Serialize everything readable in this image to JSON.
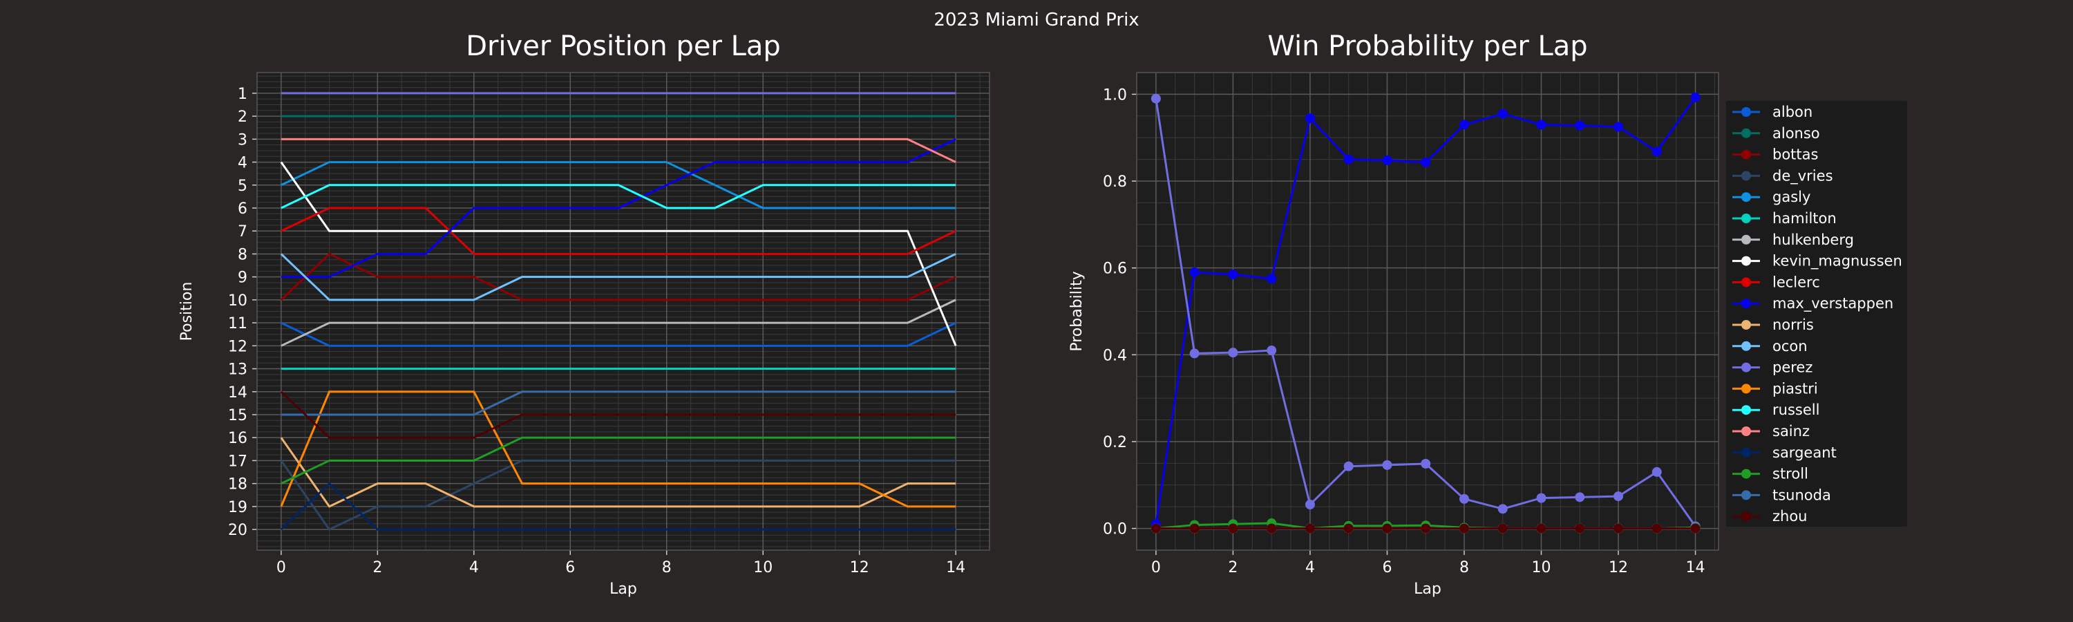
{
  "suptitle": "2023 Miami Grand Prix",
  "colors": {
    "background": "#292625",
    "axes_bg": "#1e1e1e",
    "text": "#ffffff"
  },
  "chart_data": [
    {
      "type": "line",
      "title": "Driver Position per Lap",
      "xlabel": "Lap",
      "ylabel": "Position",
      "xlim": [
        -0.5,
        14.7
      ],
      "ylim": [
        0.1,
        20.9
      ],
      "y_inverted": true,
      "x_ticks": [
        0,
        2,
        4,
        6,
        8,
        10,
        12,
        14
      ],
      "y_ticks": [
        1,
        2,
        3,
        4,
        5,
        6,
        7,
        8,
        9,
        10,
        11,
        12,
        13,
        14,
        15,
        16,
        17,
        18,
        19,
        20
      ],
      "grid": true,
      "x": [
        0,
        1,
        2,
        3,
        4,
        5,
        6,
        7,
        8,
        9,
        10,
        11,
        12,
        13,
        14
      ],
      "series": [
        {
          "name": "albon",
          "color": "#0a5dd6",
          "values": [
            11,
            12,
            12,
            12,
            12,
            12,
            12,
            12,
            12,
            12,
            12,
            12,
            12,
            12,
            11
          ]
        },
        {
          "name": "alonso",
          "color": "#006f62",
          "values": [
            2,
            2,
            2,
            2,
            2,
            2,
            2,
            2,
            2,
            2,
            2,
            2,
            2,
            2,
            2
          ]
        },
        {
          "name": "bottas",
          "color": "#900000",
          "values": [
            10,
            8,
            9,
            9,
            9,
            10,
            10,
            10,
            10,
            10,
            10,
            10,
            10,
            10,
            9
          ]
        },
        {
          "name": "de_vries",
          "color": "#2b4562",
          "values": [
            17,
            20,
            19,
            19,
            18,
            17,
            17,
            17,
            17,
            17,
            17,
            17,
            17,
            17,
            17
          ]
        },
        {
          "name": "gasly",
          "color": "#0f90e0",
          "values": [
            5,
            4,
            4,
            4,
            4,
            4,
            4,
            4,
            4,
            5,
            6,
            6,
            6,
            6,
            6
          ]
        },
        {
          "name": "hamilton",
          "color": "#00d2be",
          "values": [
            13,
            13,
            13,
            13,
            13,
            13,
            13,
            13,
            13,
            13,
            13,
            13,
            13,
            13,
            13
          ]
        },
        {
          "name": "hulkenberg",
          "color": "#b6babd",
          "values": [
            12,
            11,
            11,
            11,
            11,
            11,
            11,
            11,
            11,
            11,
            11,
            11,
            11,
            11,
            10
          ]
        },
        {
          "name": "kevin_magnussen",
          "color": "#ffffff",
          "values": [
            4,
            7,
            7,
            7,
            7,
            7,
            7,
            7,
            7,
            7,
            7,
            7,
            7,
            7,
            12
          ]
        },
        {
          "name": "leclerc",
          "color": "#dc0000",
          "values": [
            7,
            6,
            6,
            6,
            8,
            8,
            8,
            8,
            8,
            8,
            8,
            8,
            8,
            8,
            7
          ]
        },
        {
          "name": "max_verstappen",
          "color": "#0600ef",
          "values": [
            9,
            9,
            8,
            8,
            6,
            6,
            6,
            6,
            5,
            4,
            4,
            4,
            4,
            4,
            3
          ]
        },
        {
          "name": "norris",
          "color": "#eeb370",
          "values": [
            16,
            19,
            18,
            18,
            19,
            19,
            19,
            19,
            19,
            19,
            19,
            19,
            19,
            18,
            18
          ]
        },
        {
          "name": "ocon",
          "color": "#70c2ff",
          "values": [
            8,
            10,
            10,
            10,
            10,
            9,
            9,
            9,
            9,
            9,
            9,
            9,
            9,
            9,
            8
          ]
        },
        {
          "name": "perez",
          "color": "#716de2",
          "values": [
            1,
            1,
            1,
            1,
            1,
            1,
            1,
            1,
            1,
            1,
            1,
            1,
            1,
            1,
            1
          ]
        },
        {
          "name": "piastri",
          "color": "#ff8700",
          "values": [
            19,
            14,
            14,
            14,
            14,
            18,
            18,
            18,
            18,
            18,
            18,
            18,
            18,
            19,
            19
          ]
        },
        {
          "name": "russell",
          "color": "#24ffff",
          "values": [
            6,
            5,
            5,
            5,
            5,
            5,
            5,
            5,
            6,
            6,
            5,
            5,
            5,
            5,
            5
          ]
        },
        {
          "name": "sainz",
          "color": "#ff8181",
          "values": [
            3,
            3,
            3,
            3,
            3,
            3,
            3,
            3,
            3,
            3,
            3,
            3,
            3,
            3,
            4
          ]
        },
        {
          "name": "sargeant",
          "color": "#012564",
          "values": [
            20,
            18,
            20,
            20,
            20,
            20,
            20,
            20,
            20,
            20,
            20,
            20,
            20,
            20,
            20
          ]
        },
        {
          "name": "stroll",
          "color": "#1f9d24",
          "values": [
            18,
            17,
            17,
            17,
            17,
            16,
            16,
            16,
            16,
            16,
            16,
            16,
            16,
            16,
            16
          ]
        },
        {
          "name": "tsunoda",
          "color": "#356cac",
          "values": [
            15,
            15,
            15,
            15,
            15,
            14,
            14,
            14,
            14,
            14,
            14,
            14,
            14,
            14,
            14
          ]
        },
        {
          "name": "zhou",
          "color": "#500000",
          "values": [
            14,
            16,
            16,
            16,
            16,
            15,
            15,
            15,
            15,
            15,
            15,
            15,
            15,
            15,
            15
          ]
        }
      ]
    },
    {
      "type": "line",
      "title": "Win Probability per Lap",
      "xlabel": "Lap",
      "ylabel": "Probability",
      "xlim": [
        -0.5,
        14.6
      ],
      "ylim": [
        -0.05,
        1.05
      ],
      "x_ticks": [
        0,
        2,
        4,
        6,
        8,
        10,
        12,
        14
      ],
      "y_ticks": [
        0.0,
        0.2,
        0.4,
        0.6,
        0.8,
        1.0
      ],
      "grid": true,
      "markers": true,
      "legend": "right",
      "x": [
        0,
        1,
        2,
        3,
        4,
        5,
        6,
        7,
        8,
        9,
        10,
        11,
        12,
        13,
        14
      ],
      "series": [
        {
          "name": "albon",
          "color": "#0a5dd6",
          "values": [
            0,
            0,
            0,
            0,
            0,
            0,
            0,
            0,
            0,
            0,
            0,
            0,
            0,
            0,
            0
          ]
        },
        {
          "name": "alonso",
          "color": "#006f62",
          "values": [
            0,
            0,
            0,
            0,
            0,
            0,
            0,
            0,
            0,
            0,
            0,
            0,
            0,
            0,
            0
          ]
        },
        {
          "name": "bottas",
          "color": "#900000",
          "values": [
            0,
            0,
            0,
            0,
            0,
            0,
            0,
            0,
            0,
            0,
            0,
            0,
            0,
            0,
            0
          ]
        },
        {
          "name": "de_vries",
          "color": "#2b4562",
          "values": [
            0,
            0,
            0,
            0,
            0,
            0,
            0,
            0,
            0,
            0,
            0,
            0,
            0,
            0,
            0
          ]
        },
        {
          "name": "gasly",
          "color": "#0f90e0",
          "values": [
            0,
            0,
            0,
            0,
            0,
            0,
            0,
            0,
            0,
            0,
            0,
            0,
            0,
            0,
            0
          ]
        },
        {
          "name": "hamilton",
          "color": "#00d2be",
          "values": [
            0,
            0,
            0,
            0,
            0,
            0,
            0,
            0,
            0,
            0,
            0,
            0,
            0,
            0,
            0
          ]
        },
        {
          "name": "hulkenberg",
          "color": "#b6babd",
          "values": [
            0,
            0,
            0,
            0,
            0,
            0,
            0,
            0,
            0,
            0,
            0,
            0,
            0,
            0,
            0
          ]
        },
        {
          "name": "kevin_magnussen",
          "color": "#ffffff",
          "values": [
            0,
            0,
            0,
            0,
            0,
            0,
            0,
            0,
            0,
            0,
            0,
            0,
            0,
            0,
            0
          ]
        },
        {
          "name": "leclerc",
          "color": "#dc0000",
          "values": [
            0,
            0,
            0,
            0,
            0,
            0,
            0,
            0,
            0,
            0,
            0,
            0,
            0,
            0,
            0
          ]
        },
        {
          "name": "max_verstappen",
          "color": "#0600ef",
          "values": [
            0.01,
            0.59,
            0.585,
            0.575,
            0.945,
            0.85,
            0.848,
            0.843,
            0.93,
            0.955,
            0.93,
            0.928,
            0.925,
            0.868,
            0.993
          ]
        },
        {
          "name": "norris",
          "color": "#eeb370",
          "values": [
            0,
            0,
            0,
            0,
            0,
            0,
            0,
            0,
            0,
            0,
            0,
            0,
            0,
            0,
            0
          ]
        },
        {
          "name": "ocon",
          "color": "#70c2ff",
          "values": [
            0,
            0,
            0,
            0,
            0,
            0,
            0,
            0,
            0,
            0,
            0,
            0,
            0,
            0,
            0
          ]
        },
        {
          "name": "perez",
          "color": "#716de2",
          "values": [
            0.99,
            0.403,
            0.405,
            0.41,
            0.055,
            0.143,
            0.146,
            0.149,
            0.068,
            0.045,
            0.07,
            0.072,
            0.074,
            0.13,
            0.005
          ]
        },
        {
          "name": "piastri",
          "color": "#ff8700",
          "values": [
            0,
            0,
            0,
            0,
            0,
            0,
            0,
            0,
            0,
            0,
            0,
            0,
            0,
            0,
            0
          ]
        },
        {
          "name": "russell",
          "color": "#24ffff",
          "values": [
            0,
            0,
            0,
            0,
            0,
            0,
            0,
            0,
            0,
            0,
            0,
            0,
            0,
            0,
            0
          ]
        },
        {
          "name": "sainz",
          "color": "#ff8181",
          "values": [
            0,
            0,
            0,
            0,
            0,
            0,
            0,
            0,
            0,
            0,
            0,
            0,
            0,
            0,
            0
          ]
        },
        {
          "name": "sargeant",
          "color": "#012564",
          "values": [
            0,
            0,
            0,
            0,
            0,
            0,
            0,
            0,
            0,
            0,
            0,
            0,
            0,
            0,
            0
          ]
        },
        {
          "name": "stroll",
          "color": "#1f9d24",
          "values": [
            0.0,
            0.008,
            0.01,
            0.012,
            0.0,
            0.006,
            0.006,
            0.007,
            0.002,
            0.0,
            0.0,
            0.0,
            0.0,
            0.0,
            0.002
          ]
        },
        {
          "name": "tsunoda",
          "color": "#356cac",
          "values": [
            0,
            0,
            0,
            0,
            0,
            0,
            0,
            0,
            0,
            0,
            0,
            0,
            0,
            0,
            0
          ]
        },
        {
          "name": "zhou",
          "color": "#500000",
          "values": [
            0,
            0,
            0,
            0,
            0,
            0,
            0,
            0,
            0,
            0,
            0,
            0,
            0,
            0,
            0
          ]
        }
      ]
    }
  ]
}
